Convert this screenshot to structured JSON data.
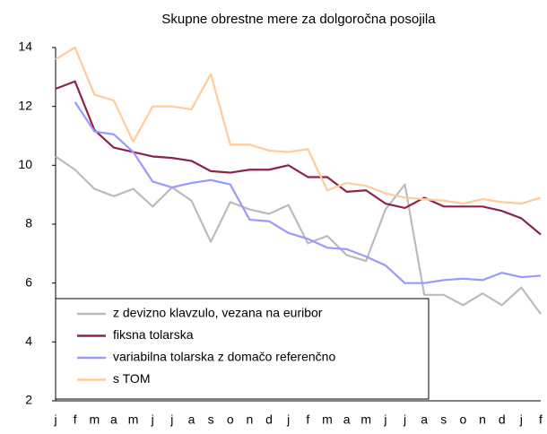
{
  "chart_data": {
    "type": "line",
    "title": "Skupne obrestne mere za dolgoročna posojila",
    "categories": [
      "j",
      "f",
      "m",
      "a",
      "m",
      "j",
      "j",
      "a",
      "s",
      "o",
      "n",
      "d",
      "j",
      "f",
      "m",
      "a",
      "m",
      "j",
      "j",
      "a",
      "s",
      "o",
      "n",
      "d",
      "j",
      "f"
    ],
    "series": [
      {
        "name": "z devizno klavzulo, vezana na euribor",
        "color": "#bbbbbb",
        "values": [
          10.3,
          9.85,
          9.2,
          8.95,
          9.2,
          8.6,
          9.25,
          8.8,
          7.4,
          8.75,
          8.5,
          8.35,
          8.65,
          7.35,
          7.6,
          6.95,
          6.75,
          8.5,
          9.35,
          5.6,
          5.6,
          5.25,
          5.65,
          5.25,
          5.85,
          4.95
        ]
      },
      {
        "name": "fiksna tolarska",
        "color": "#8b2252",
        "values": [
          12.6,
          12.85,
          11.2,
          10.6,
          10.45,
          10.3,
          10.25,
          10.15,
          9.8,
          9.75,
          9.85,
          9.85,
          10.0,
          9.6,
          9.6,
          9.1,
          9.15,
          8.7,
          8.55,
          8.9,
          8.6,
          8.6,
          8.6,
          8.45,
          8.2,
          7.65
        ]
      },
      {
        "name": "variabilna tolarska z domačo referenčno",
        "color": "#9999ff",
        "values": [
          null,
          12.15,
          11.15,
          11.05,
          10.45,
          9.45,
          9.25,
          9.4,
          9.5,
          9.35,
          8.15,
          8.1,
          7.7,
          7.5,
          7.2,
          7.15,
          6.9,
          6.6,
          6.0,
          6.0,
          6.1,
          6.15,
          6.1,
          6.35,
          6.2,
          6.25
        ]
      },
      {
        "name": "s TOM",
        "color": "#ffcc99",
        "values": [
          13.6,
          14.0,
          12.4,
          12.2,
          10.8,
          12.0,
          12.0,
          11.9,
          13.1,
          10.7,
          10.7,
          10.5,
          10.45,
          10.55,
          9.15,
          9.4,
          9.3,
          9.05,
          8.9,
          8.85,
          8.8,
          8.7,
          8.85,
          8.75,
          8.7,
          8.9
        ]
      }
    ],
    "ylim": [
      2,
      14
    ],
    "yticks": [
      2,
      4,
      6,
      8,
      10,
      12,
      14
    ],
    "grid": false
  }
}
